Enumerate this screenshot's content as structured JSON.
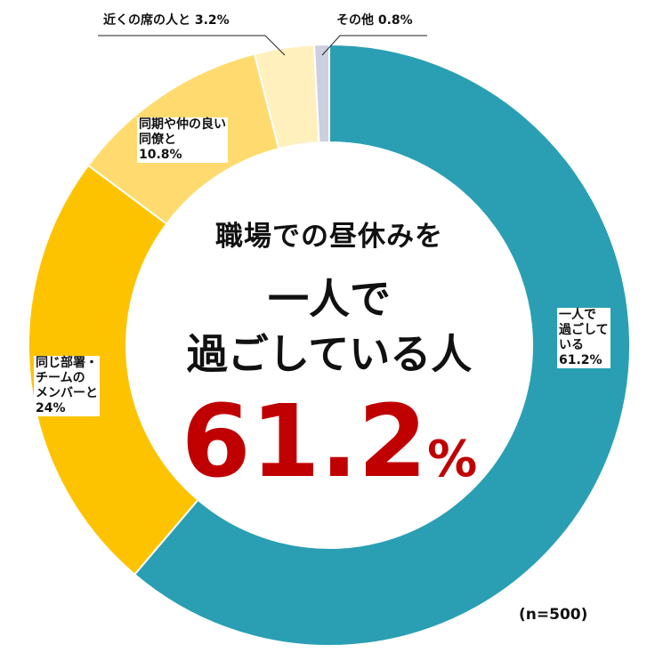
{
  "chart_data": {
    "type": "pie",
    "donut": true,
    "slices": [
      {
        "label": "一人で過ごしている",
        "value": 61.2,
        "display": "一人で\n過ごして\nいる\n61.2%",
        "color": "#2a9fb3"
      },
      {
        "label": "同じ部署・チームのメンバーと",
        "value": 24,
        "display": "同じ部署・\nチームの\nメンバーと\n24%",
        "color": "#fdc300"
      },
      {
        "label": "同期や仲の良い同僚と",
        "value": 10.8,
        "display": "同期や仲の良い\n同僚と\n10.8%",
        "color": "#ffdb6f"
      },
      {
        "label": "近くの席の人と",
        "value": 3.2,
        "display": "近くの席の人と 3.2%",
        "color": "#fff0bd"
      },
      {
        "label": "その他",
        "value": 0.8,
        "display": "その他 0.8%",
        "color": "#cccfe0"
      }
    ],
    "start_angle": "top",
    "direction": "clockwise"
  },
  "center": {
    "line1": "職場での昼休みを",
    "line2": "一人で",
    "line3": "過ごしている人",
    "value": "61.2",
    "unit": "%"
  },
  "sample_size": "(n=500)"
}
